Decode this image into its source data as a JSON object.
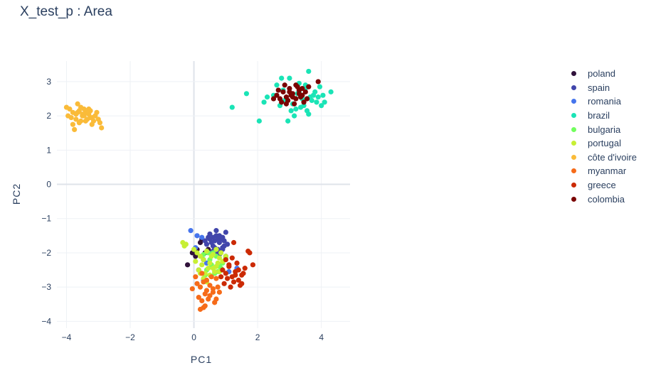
{
  "title": "X_test_p : Area",
  "chart_data": {
    "type": "scatter",
    "title": "X_test_p : Area",
    "xlabel": "PC1",
    "ylabel": "PC2",
    "xlim": [
      -4.3,
      4.9
    ],
    "ylim": [
      -4.2,
      3.6
    ],
    "xticks": [
      -4,
      -2,
      0,
      2,
      4
    ],
    "yticks": [
      -4,
      -3,
      -2,
      -1,
      0,
      1,
      2,
      3
    ],
    "xtick_labels": [
      "−4",
      "−2",
      "0",
      "2",
      "4"
    ],
    "ytick_labels": [
      "−4",
      "−3",
      "−2",
      "−1",
      "0",
      "1",
      "2",
      "3"
    ],
    "grid": true,
    "legend_position": "right",
    "series": [
      {
        "name": "poland",
        "color": "#30123b",
        "x": [
          0.05,
          0.2,
          -0.2,
          0.35,
          0.15,
          0.45,
          0.1,
          0.3,
          -0.05,
          0.25
        ],
        "y": [
          -2.1,
          -1.7,
          -2.35,
          -2.0,
          -2.5,
          -1.9,
          -1.9,
          -2.2,
          -2.0,
          -1.6
        ]
      },
      {
        "name": "spain",
        "color": "#4145ab",
        "x": [
          0.5,
          0.7,
          0.9,
          1.0,
          0.6,
          0.8,
          0.4,
          0.95,
          0.65,
          0.75,
          0.55,
          0.85,
          1.05,
          0.45,
          0.7,
          0.9,
          0.6,
          0.8,
          0.35,
          1.0,
          0.5,
          0.75,
          0.65,
          0.85,
          0.95,
          0.55,
          0.7,
          0.8,
          0.6,
          0.9
        ],
        "y": [
          -1.6,
          -1.5,
          -1.55,
          -1.4,
          -1.8,
          -1.7,
          -1.75,
          -1.8,
          -1.65,
          -1.9,
          -2.0,
          -1.6,
          -1.75,
          -1.55,
          -1.35,
          -1.85,
          -1.95,
          -2.05,
          -1.65,
          -2.1,
          -1.45,
          -1.6,
          -1.85,
          -1.95,
          -1.65,
          -1.7,
          -2.0,
          -1.5,
          -1.55,
          -1.9
        ]
      },
      {
        "name": "romania",
        "color": "#4675ed",
        "x": [
          -0.1,
          0.1,
          0.25,
          1.35,
          0.05,
          0.4,
          1.1,
          0.3
        ],
        "y": [
          -1.35,
          -1.5,
          -1.55,
          -2.45,
          -1.85,
          -2.3,
          -2.55,
          -2.8
        ]
      },
      {
        "name": "brazil",
        "color": "#1ae4b6",
        "x": [
          1.2,
          1.65,
          2.05,
          2.2,
          2.3,
          2.5,
          2.6,
          2.7,
          2.8,
          2.9,
          3.0,
          3.1,
          3.2,
          3.3,
          3.4,
          3.5,
          3.6,
          3.7,
          3.8,
          3.9,
          4.0,
          4.1,
          4.3,
          2.85,
          3.05,
          3.25,
          3.45,
          3.65,
          3.85,
          2.95,
          3.15,
          3.35,
          3.55,
          3.75,
          3.95,
          3.3,
          3.6,
          2.75,
          3.5,
          4.05
        ],
        "y": [
          2.25,
          2.65,
          1.85,
          2.4,
          2.55,
          2.6,
          2.9,
          2.3,
          2.75,
          2.5,
          3.1,
          2.35,
          2.2,
          2.95,
          2.5,
          2.8,
          3.3,
          2.45,
          2.7,
          2.55,
          2.3,
          2.4,
          2.7,
          2.45,
          2.15,
          2.65,
          2.3,
          2.55,
          2.4,
          1.85,
          2.0,
          2.25,
          2.15,
          2.6,
          2.85,
          2.7,
          2.05,
          3.1,
          2.9,
          2.6
        ]
      },
      {
        "name": "bulgaria",
        "color": "#72fe5e",
        "x": [
          0.3,
          0.5,
          0.7,
          0.9,
          0.4,
          0.6,
          0.8,
          1.0,
          0.35,
          0.55,
          0.75,
          0.45,
          0.65,
          0.85
        ],
        "y": [
          -2.05,
          -2.2,
          -2.1,
          -2.3,
          -2.5,
          -2.0,
          -2.4,
          -2.15,
          -2.65,
          -2.35,
          -2.55,
          -2.0,
          -2.6,
          -2.45
        ]
      },
      {
        "name": "portugal",
        "color": "#c7ef34",
        "x": [
          -0.35,
          -0.25,
          0.0,
          0.1,
          0.2,
          0.3,
          0.4,
          0.5,
          0.6,
          0.7,
          0.8,
          0.9,
          0.15,
          0.25,
          0.35,
          0.45,
          0.55,
          0.65,
          0.75,
          0.85,
          0.05,
          0.3,
          0.5,
          0.7,
          0.4,
          0.6,
          0.2,
          0.8,
          1.0,
          -0.3
        ],
        "y": [
          -1.7,
          -1.75,
          -1.9,
          -2.0,
          -2.1,
          -2.2,
          -1.95,
          -2.3,
          -2.05,
          -2.4,
          -2.15,
          -2.25,
          -2.5,
          -2.35,
          -2.6,
          -2.45,
          -2.1,
          -2.55,
          -2.3,
          -2.0,
          -2.25,
          -2.75,
          -2.65,
          -1.9,
          -2.85,
          -2.45,
          -2.6,
          -2.55,
          -2.1,
          -1.8
        ]
      },
      {
        "name": "côte d'ivoire",
        "color": "#fabb39",
        "x": [
          -4.0,
          -3.9,
          -3.8,
          -3.7,
          -3.6,
          -3.5,
          -3.4,
          -3.3,
          -3.2,
          -3.1,
          -3.0,
          -2.9,
          -3.85,
          -3.75,
          -3.65,
          -3.55,
          -3.45,
          -3.35,
          -3.25,
          -3.15,
          -3.05,
          -3.95,
          -3.7,
          -3.5,
          -3.3,
          -3.1,
          -3.6,
          -3.4,
          -3.2,
          -3.8,
          -3.55,
          -3.45,
          -3.25,
          -2.95,
          -3.65
        ],
        "y": [
          2.25,
          2.2,
          2.1,
          2.05,
          2.15,
          2.0,
          2.1,
          2.05,
          1.95,
          2.0,
          1.9,
          1.65,
          1.95,
          1.6,
          2.35,
          1.85,
          2.2,
          1.9,
          2.15,
          1.85,
          2.1,
          2.0,
          1.9,
          2.05,
          2.2,
          2.0,
          1.8,
          1.85,
          1.75,
          1.75,
          2.25,
          2.0,
          1.95,
          1.8,
          2.1
        ]
      },
      {
        "name": "myanmar",
        "color": "#f66b19",
        "x": [
          0.1,
          0.2,
          0.3,
          0.4,
          0.5,
          0.6,
          0.7,
          0.8,
          0.15,
          0.25,
          0.35,
          0.45,
          0.55,
          0.65,
          0.75,
          0.05,
          0.3,
          0.5,
          0.2,
          0.4,
          0.6,
          0.35,
          0.25,
          -0.05,
          0.7
        ],
        "y": [
          -2.9,
          -3.0,
          -2.85,
          -3.1,
          -2.95,
          -3.05,
          -2.75,
          -3.15,
          -3.3,
          -3.4,
          -3.2,
          -3.35,
          -2.7,
          -3.45,
          -3.0,
          -2.7,
          -3.6,
          -3.25,
          -3.65,
          -2.8,
          -3.15,
          -3.55,
          -2.6,
          -3.05,
          -3.35
        ]
      },
      {
        "name": "greece",
        "color": "#cb2a04",
        "x": [
          0.9,
          1.0,
          1.1,
          1.2,
          1.3,
          1.4,
          1.5,
          1.6,
          1.7,
          1.85,
          0.95,
          1.05,
          1.15,
          1.25,
          1.35,
          1.45,
          1.55,
          1.0,
          1.2,
          1.4,
          1.1,
          1.3,
          1.5,
          0.85,
          1.25,
          1.75
        ],
        "y": [
          -2.5,
          -2.6,
          -2.4,
          -2.7,
          -2.55,
          -2.8,
          -2.65,
          -2.45,
          -1.95,
          -2.35,
          -2.9,
          -2.75,
          -3.0,
          -2.85,
          -2.3,
          -2.95,
          -2.6,
          -2.2,
          -2.15,
          -2.5,
          -2.35,
          -2.65,
          -2.9,
          -2.7,
          -1.7,
          -2.0
        ]
      },
      {
        "name": "colombia",
        "color": "#7a0403",
        "x": [
          2.6,
          2.7,
          2.8,
          2.9,
          3.0,
          3.1,
          3.2,
          3.3,
          3.4,
          3.5,
          3.6,
          2.75,
          2.85,
          2.95,
          3.05,
          3.15,
          3.25,
          3.35,
          3.45,
          3.55,
          2.5,
          3.9,
          3.0,
          3.2,
          2.65,
          3.1,
          3.3,
          2.9,
          3.4
        ],
        "y": [
          2.6,
          2.5,
          2.7,
          2.55,
          2.8,
          2.65,
          2.5,
          2.75,
          2.6,
          2.7,
          2.85,
          2.4,
          2.9,
          2.45,
          2.6,
          2.35,
          2.85,
          2.55,
          2.4,
          2.5,
          2.5,
          3.0,
          2.7,
          2.9,
          2.75,
          2.55,
          2.65,
          2.35,
          2.8
        ]
      }
    ]
  }
}
